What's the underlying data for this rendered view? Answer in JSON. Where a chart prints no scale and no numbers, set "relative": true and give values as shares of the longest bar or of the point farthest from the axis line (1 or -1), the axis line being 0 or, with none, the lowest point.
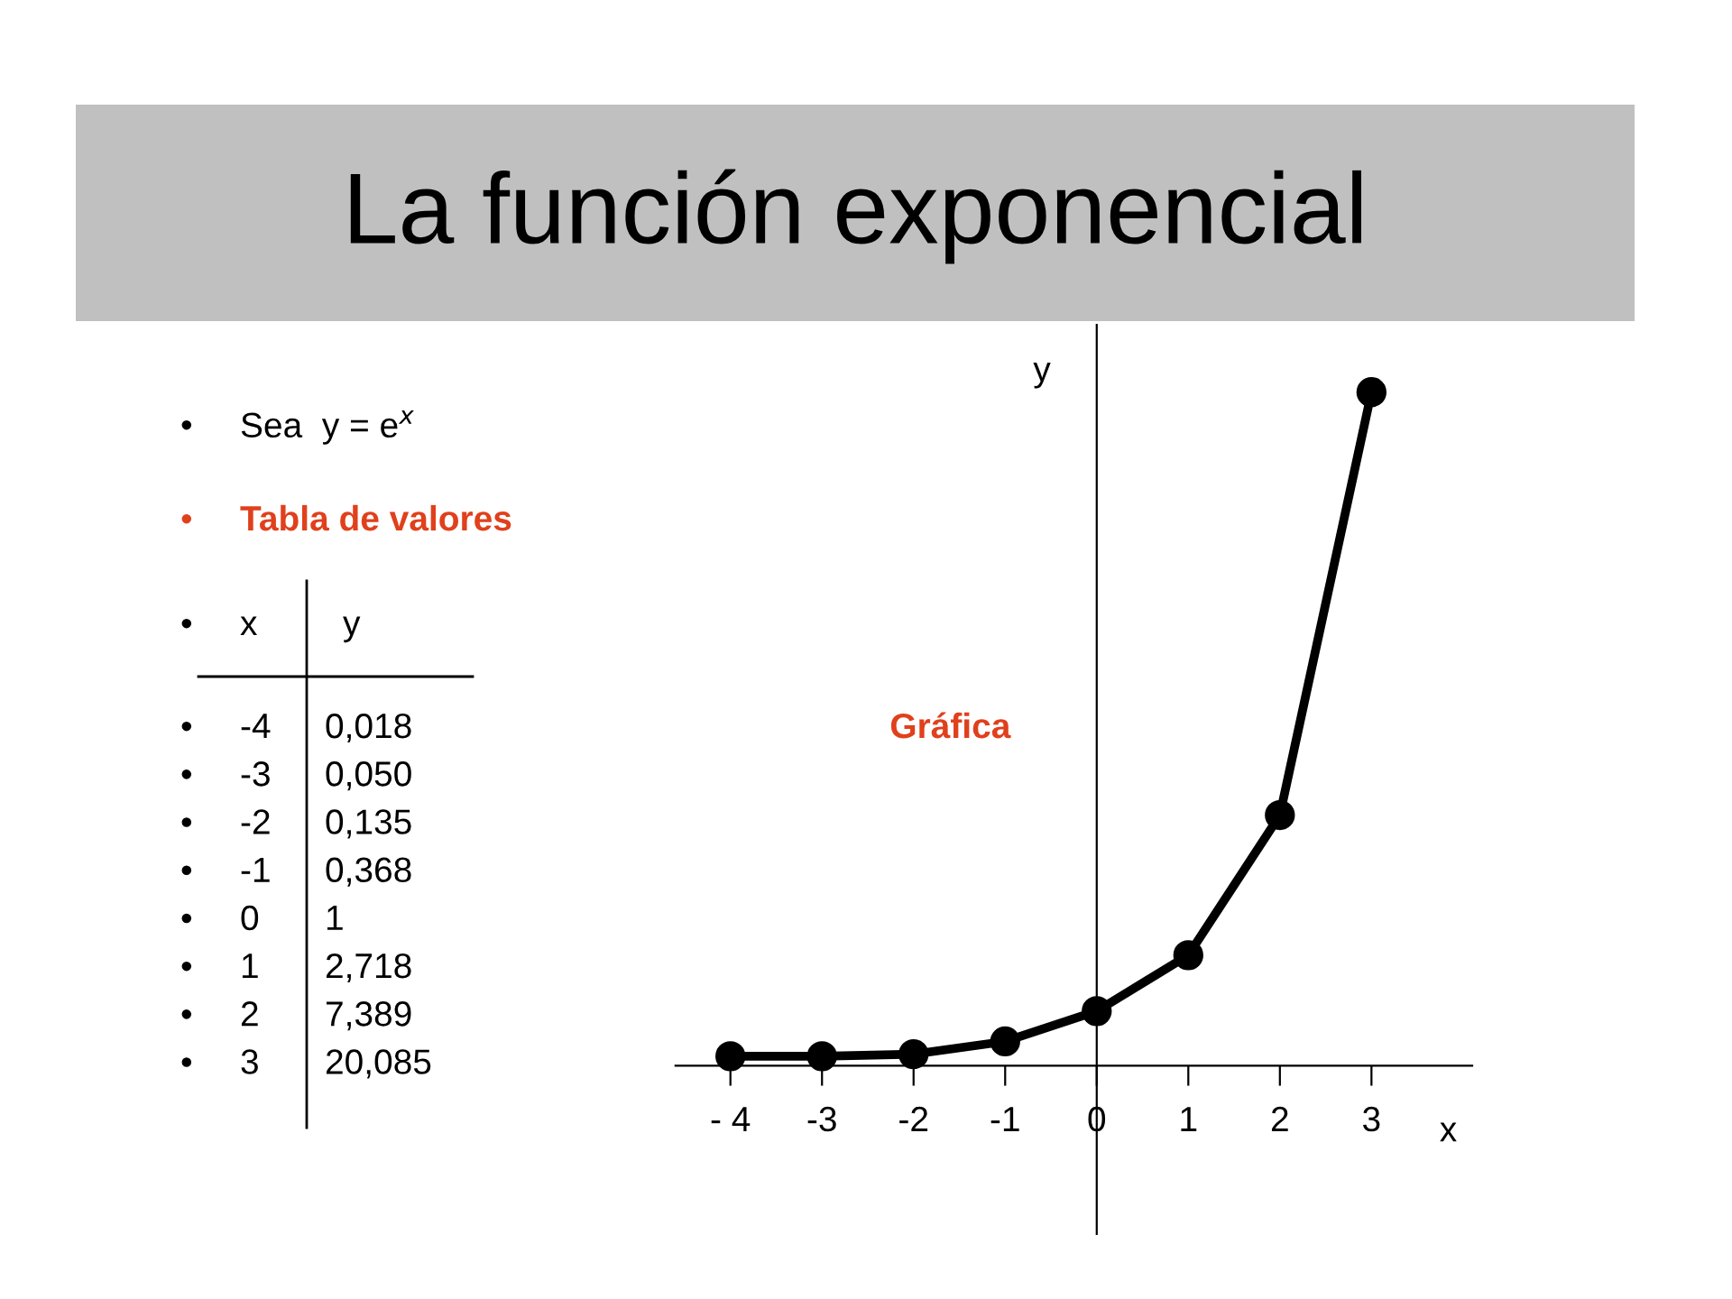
{
  "chart_data": {
    "type": "line",
    "title": "La función exponencial",
    "x": [
      -4,
      -3,
      -2,
      -1,
      0,
      1,
      2,
      3
    ],
    "values": [
      0.014,
      0.014,
      0.017,
      0.036,
      0.081,
      0.164,
      0.372,
      1
    ],
    "relative": true,
    "color": "#000000",
    "marker": "circle",
    "line_style": "solid",
    "xlabel": "x",
    "ylabel": "y",
    "xlim": [
      -4.6,
      4.1
    ],
    "xticks": [
      {
        "value": -4,
        "label": "- 4"
      },
      -3,
      -2,
      -1,
      0,
      1,
      2,
      3
    ],
    "tick_labels": "x",
    "annotations": [
      "•",
      "Sea  y = e$^{x}$",
      "•",
      "Tabla de valores",
      "•",
      "x",
      "y",
      "•",
      "-4",
      "0,018",
      "•",
      "-3",
      "0,050",
      "•",
      "-2",
      "0,135",
      "•",
      "-1",
      "0,368",
      "•",
      "0",
      "1",
      "•",
      "1",
      "2,718",
      "•",
      "2",
      "7,389",
      "•",
      "3",
      "20,085",
      "Gráfica"
    ]
  }
}
